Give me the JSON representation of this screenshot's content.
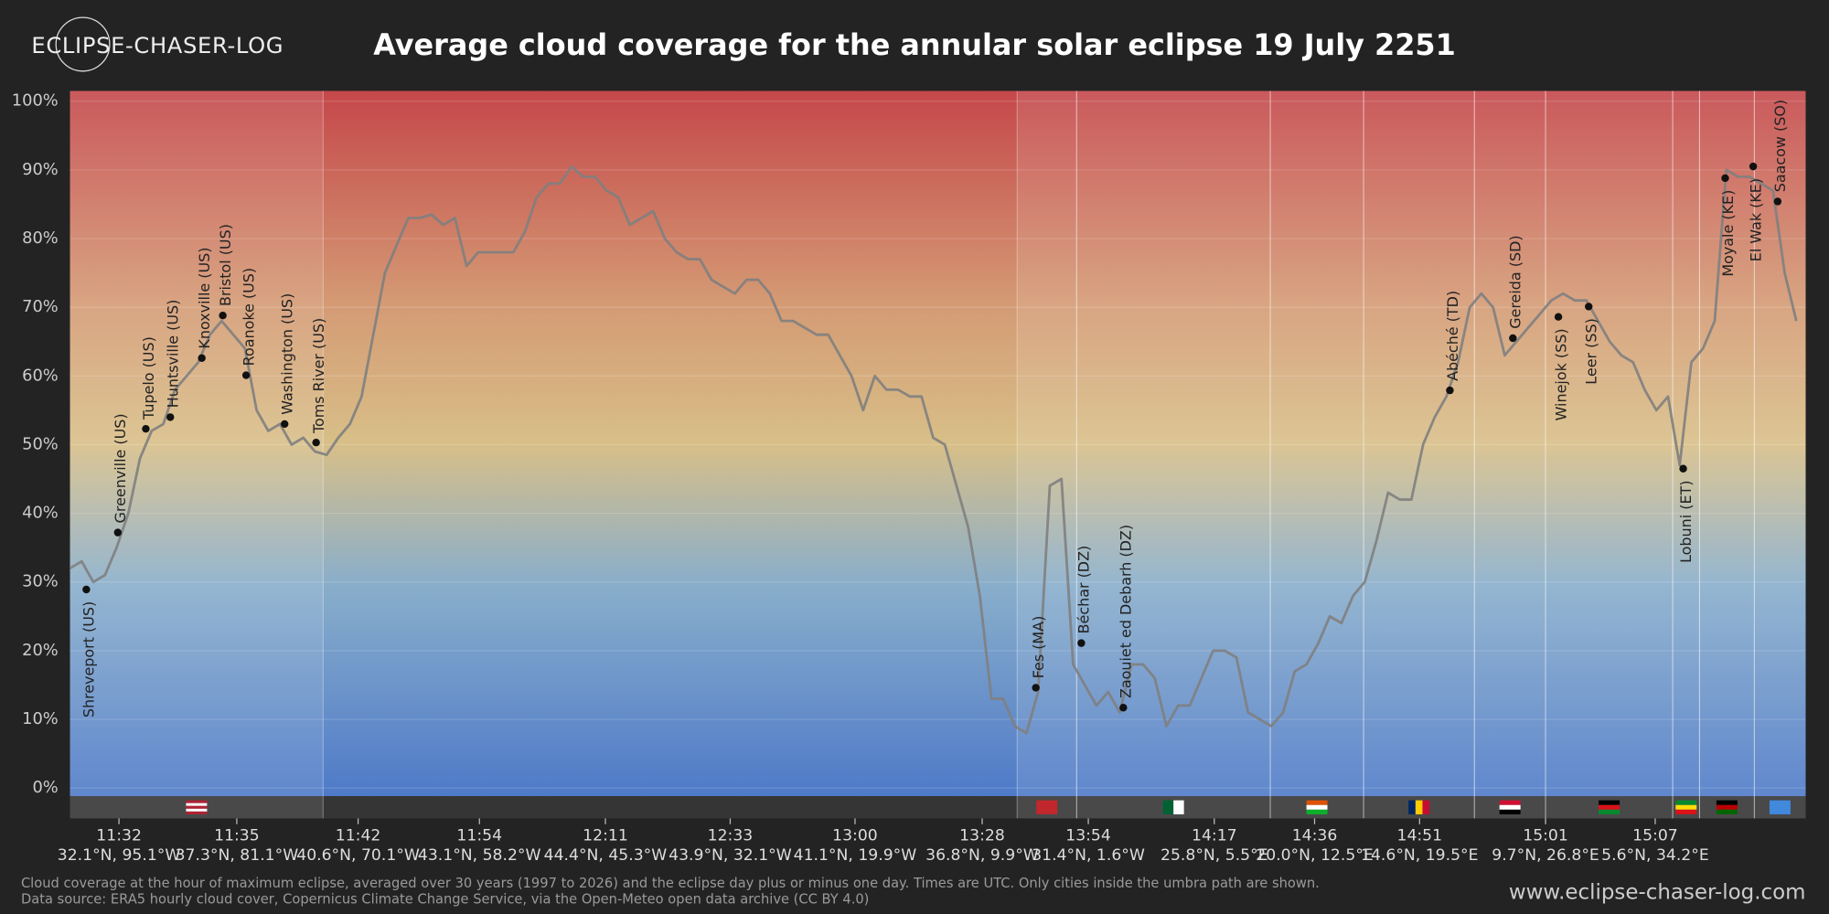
{
  "logo": "ECLIPSE-CHASER-LOG",
  "chart_data": {
    "type": "line",
    "title": "Average cloud coverage for the annular solar eclipse 19 July 2251",
    "color": "#7f7f7f",
    "grid": true,
    "xlim": [
      0,
      148.8
    ],
    "ylim": [
      -1.2,
      101.5
    ],
    "values": [
      32,
      33,
      30,
      31,
      35,
      40,
      48,
      52,
      53,
      58,
      60,
      62,
      66,
      68,
      66,
      64,
      55,
      52,
      53,
      50,
      51,
      49,
      48.5,
      51,
      53,
      57,
      66,
      75,
      79,
      83,
      83,
      83.5,
      82,
      83,
      76,
      78,
      78,
      78,
      78,
      81,
      86,
      88,
      88,
      90.5,
      89,
      89,
      87,
      86,
      82,
      83,
      84,
      80,
      78,
      77,
      77,
      74,
      73,
      72,
      74,
      74,
      72,
      68,
      68,
      67,
      66,
      66,
      63,
      60,
      55,
      60,
      58,
      58,
      57,
      57,
      51,
      50,
      44,
      38,
      28,
      13,
      13,
      9,
      8,
      14,
      44,
      45,
      18,
      15,
      12,
      14,
      11,
      18,
      18,
      16,
      9,
      12,
      12,
      16,
      20,
      20,
      19,
      11,
      10,
      9,
      11,
      17,
      18,
      21,
      25,
      24,
      28,
      30,
      36,
      43,
      42,
      42,
      50,
      54,
      57,
      62,
      70,
      72,
      70,
      63,
      65,
      67,
      69,
      71,
      72,
      71,
      71,
      68,
      65,
      63,
      62,
      58,
      55,
      57,
      47,
      62,
      64,
      68,
      90,
      89,
      89,
      88,
      87,
      75,
      68
    ],
    "yticks": [
      {
        "value": 0,
        "label": "0%"
      },
      {
        "value": 10,
        "label": "10%"
      },
      {
        "value": 20,
        "label": "20%"
      },
      {
        "value": 30,
        "label": "30%"
      },
      {
        "value": 40,
        "label": "40%"
      },
      {
        "value": 50,
        "label": "50%"
      },
      {
        "value": 60,
        "label": "60%"
      },
      {
        "value": 70,
        "label": "70%"
      },
      {
        "value": 80,
        "label": "80%"
      },
      {
        "value": 90,
        "label": "90%"
      },
      {
        "value": 100,
        "label": "100%"
      }
    ],
    "xticks": [
      {
        "value": 4.2,
        "label": "11:32",
        "coord": "32.1°N, 95.1°W"
      },
      {
        "value": 14.3,
        "label": "11:35",
        "coord": "37.3°N, 81.1°W"
      },
      {
        "value": 24.7,
        "label": "11:42",
        "coord": "40.6°N, 70.1°W"
      },
      {
        "value": 35.1,
        "label": "11:54",
        "coord": "43.1°N, 58.2°W"
      },
      {
        "value": 45.9,
        "label": "12:11",
        "coord": "44.4°N, 45.3°W"
      },
      {
        "value": 56.6,
        "label": "12:33",
        "coord": "43.9°N, 32.1°W"
      },
      {
        "value": 67.3,
        "label": "13:00",
        "coord": "41.1°N, 19.9°W"
      },
      {
        "value": 78.2,
        "label": "13:28",
        "coord": "36.8°N, 9.9°W"
      },
      {
        "value": 87.3,
        "label": "13:54",
        "coord": "31.4°N, 1.6°W"
      },
      {
        "value": 98.1,
        "label": "14:17",
        "coord": "25.8°N, 5.5°E"
      },
      {
        "value": 106.7,
        "label": "14:36",
        "coord": "20.0°N, 12.5°E"
      },
      {
        "value": 115.7,
        "label": "14:51",
        "coord": "14.6°N, 19.5°E"
      },
      {
        "value": 126.5,
        "label": "15:01",
        "coord": "9.7°N, 26.8°E"
      },
      {
        "value": 135.9,
        "label": "15:07",
        "coord": "5.6°N, 34.2°E"
      }
    ],
    "cities": [
      {
        "name": "Shreveport (US)",
        "x": 1.4,
        "value": 28.9
      },
      {
        "name": "Greenville (US)",
        "x": 4.1,
        "value": 37.2
      },
      {
        "name": "Tupelo (US)",
        "x": 6.5,
        "value": 52.3
      },
      {
        "name": "Huntsville (US)",
        "x": 8.6,
        "value": 54.0
      },
      {
        "name": "Knoxville (US)",
        "x": 11.3,
        "value": 62.6
      },
      {
        "name": "Bristol (US)",
        "x": 13.1,
        "value": 68.8
      },
      {
        "name": "Roanoke (US)",
        "x": 15.1,
        "value": 60.1
      },
      {
        "name": "Washington (US)",
        "x": 18.4,
        "value": 53.0
      },
      {
        "name": "Toms River (US)",
        "x": 21.1,
        "value": 50.3
      },
      {
        "name": "Fes (MA)",
        "x": 82.8,
        "value": 14.6
      },
      {
        "name": "Béchar (DZ)",
        "x": 86.7,
        "value": 21.1
      },
      {
        "name": "Zaouiet ed Debarh (DZ)",
        "x": 90.3,
        "value": 11.7
      },
      {
        "name": "Abéché (TD)",
        "x": 118.3,
        "value": 57.9
      },
      {
        "name": "Gereida (SD)",
        "x": 123.7,
        "value": 65.5
      },
      {
        "name": "Winejok (SS)",
        "x": 127.6,
        "value": 68.6
      },
      {
        "name": "Leer (SS)",
        "x": 130.2,
        "value": 70.1
      },
      {
        "name": "Lobuni (ET)",
        "x": 138.3,
        "value": 46.5
      },
      {
        "name": "Moyale (KE)",
        "x": 141.9,
        "value": 88.8
      },
      {
        "name": "El Wak (KE)",
        "x": 144.3,
        "value": 90.5
      },
      {
        "name": "Saacow (SO)",
        "x": 146.4,
        "value": 85.4
      }
    ],
    "regions": [
      {
        "from": 0,
        "to": 21.7,
        "flag": {
          "dir": "h",
          "colors": [
            "#b22234",
            "#ffffff",
            "#b22234",
            "#ffffff",
            "#b22234"
          ]
        }
      },
      {
        "from": 81.2,
        "to": 86.3,
        "flag": {
          "dir": "h",
          "colors": [
            "#c1272d"
          ]
        }
      },
      {
        "from": 86.3,
        "to": 102.9,
        "flag": {
          "dir": "v",
          "colors": [
            "#006233",
            "#ffffff"
          ]
        }
      },
      {
        "from": 102.9,
        "to": 110.9,
        "flag": {
          "dir": "h",
          "colors": [
            "#e05206",
            "#ffffff",
            "#0db02b"
          ]
        }
      },
      {
        "from": 110.9,
        "to": 120.4,
        "flag": {
          "dir": "v",
          "colors": [
            "#002664",
            "#fecb00",
            "#c60c30"
          ]
        }
      },
      {
        "from": 120.4,
        "to": 126.5,
        "flag": {
          "dir": "h",
          "colors": [
            "#d21034",
            "#ffffff",
            "#000000"
          ]
        }
      },
      {
        "from": 126.5,
        "to": 137.4,
        "flag": {
          "dir": "h",
          "colors": [
            "#000000",
            "#da121a",
            "#078930"
          ]
        }
      },
      {
        "from": 137.4,
        "to": 139.7,
        "flag": {
          "dir": "h",
          "colors": [
            "#078930",
            "#fcdd09",
            "#da121a"
          ]
        }
      },
      {
        "from": 139.7,
        "to": 144.4,
        "flag": {
          "dir": "h",
          "colors": [
            "#000000",
            "#bb0000",
            "#006600"
          ]
        }
      },
      {
        "from": 144.4,
        "to": 148.8,
        "flag": {
          "dir": "h",
          "colors": [
            "#4189dd"
          ]
        }
      }
    ]
  },
  "footnote": [
    "Cloud coverage at the hour of maximum eclipse, averaged over 30 years (1997 to 2026) and the eclipse day plus or minus one day. Times are UTC. Only cities inside the umbra path are shown.",
    "Data source: ERA5 hourly cloud cover, Copernicus Climate Change Service, via the Open-Meteo open data archive (CC BY 4.0)"
  ],
  "website": "www.eclipse-chaser-log.com"
}
